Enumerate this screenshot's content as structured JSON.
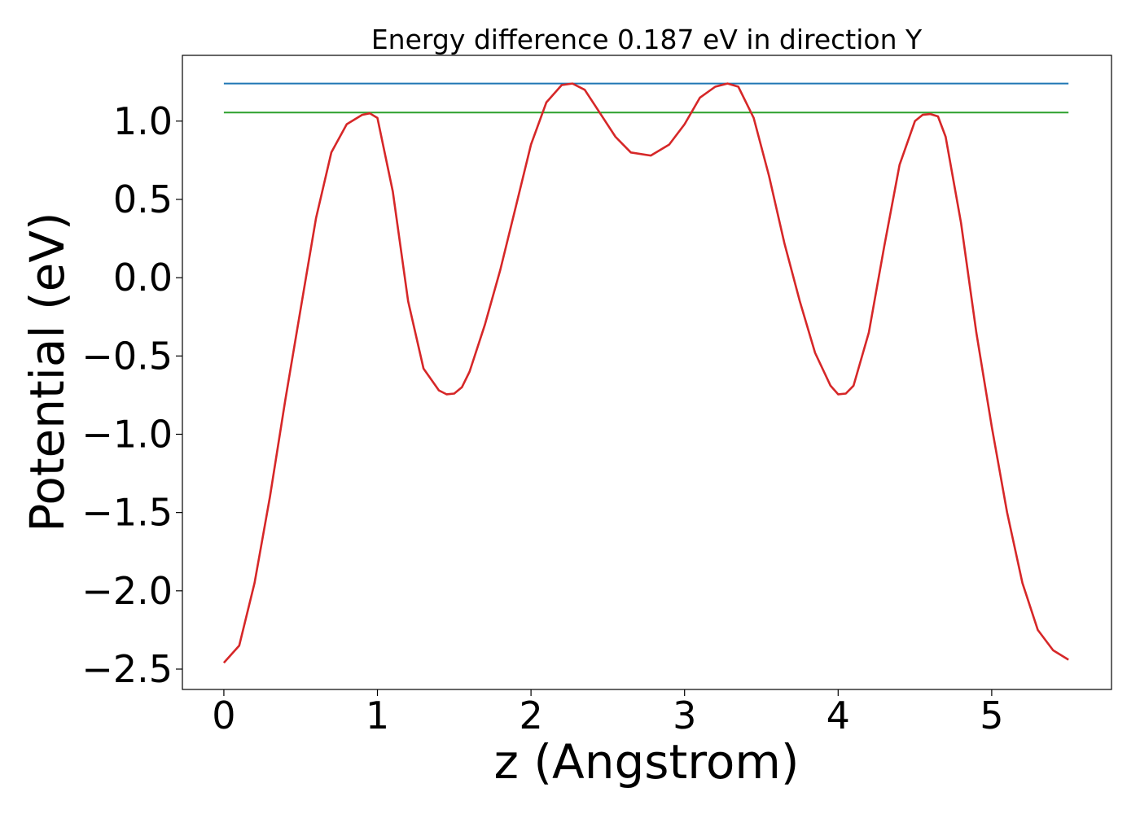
{
  "chart_data": {
    "type": "line",
    "title": "Energy difference 0.187 eV in direction Y",
    "xlabel": "z (Angstrom)",
    "ylabel": "Potential (eV)",
    "xlim": [
      -0.27,
      5.78
    ],
    "ylim": [
      -2.63,
      1.42
    ],
    "grid": false,
    "x_ticks": [
      0,
      1,
      2,
      3,
      4,
      5
    ],
    "x_tick_labels": [
      "0",
      "1",
      "2",
      "3",
      "4",
      "5"
    ],
    "y_ticks": [
      1.0,
      0.5,
      0.0,
      -0.5,
      -1.0,
      -1.5,
      -2.0,
      -2.5
    ],
    "y_tick_labels": [
      "1.0",
      "0.5",
      "0.0",
      "−0.5",
      "−1.0",
      "−1.5",
      "−2.0",
      "−2.5"
    ],
    "series": [
      {
        "color": "#1f77b4",
        "x": [
          0,
          5.5
        ],
        "y": [
          1.24,
          1.24
        ]
      },
      {
        "color": "#2ca02c",
        "x": [
          0,
          5.5
        ],
        "y": [
          1.055,
          1.055
        ]
      },
      {
        "color": "#d62728",
        "x": [
          0,
          0.1,
          0.2,
          0.3,
          0.4,
          0.5,
          0.6,
          0.7,
          0.8,
          0.9,
          0.95,
          1.0,
          1.1,
          1.2,
          1.3,
          1.4,
          1.45,
          1.5,
          1.55,
          1.6,
          1.7,
          1.8,
          1.9,
          2.0,
          2.1,
          2.2,
          2.27,
          2.35,
          2.45,
          2.55,
          2.65,
          2.78,
          2.9,
          3.0,
          3.1,
          3.2,
          3.28,
          3.35,
          3.45,
          3.55,
          3.65,
          3.75,
          3.85,
          3.95,
          4.0,
          4.05,
          4.1,
          4.2,
          4.3,
          4.4,
          4.5,
          4.55,
          4.6,
          4.65,
          4.7,
          4.8,
          4.9,
          5.0,
          5.1,
          5.2,
          5.3,
          5.4,
          5.5
        ],
        "y": [
          -2.46,
          -2.35,
          -1.95,
          -1.4,
          -0.78,
          -0.2,
          0.38,
          0.8,
          0.98,
          1.04,
          1.05,
          1.02,
          0.55,
          -0.15,
          -0.58,
          -0.72,
          -0.745,
          -0.74,
          -0.7,
          -0.6,
          -0.3,
          0.05,
          0.45,
          0.85,
          1.12,
          1.23,
          1.24,
          1.2,
          1.05,
          0.9,
          0.8,
          0.78,
          0.85,
          0.98,
          1.15,
          1.22,
          1.24,
          1.22,
          1.02,
          0.65,
          0.22,
          -0.15,
          -0.48,
          -0.69,
          -0.745,
          -0.74,
          -0.69,
          -0.35,
          0.2,
          0.72,
          1.0,
          1.04,
          1.045,
          1.03,
          0.9,
          0.35,
          -0.35,
          -0.95,
          -1.5,
          -1.95,
          -2.25,
          -2.38,
          -2.44
        ]
      }
    ]
  }
}
